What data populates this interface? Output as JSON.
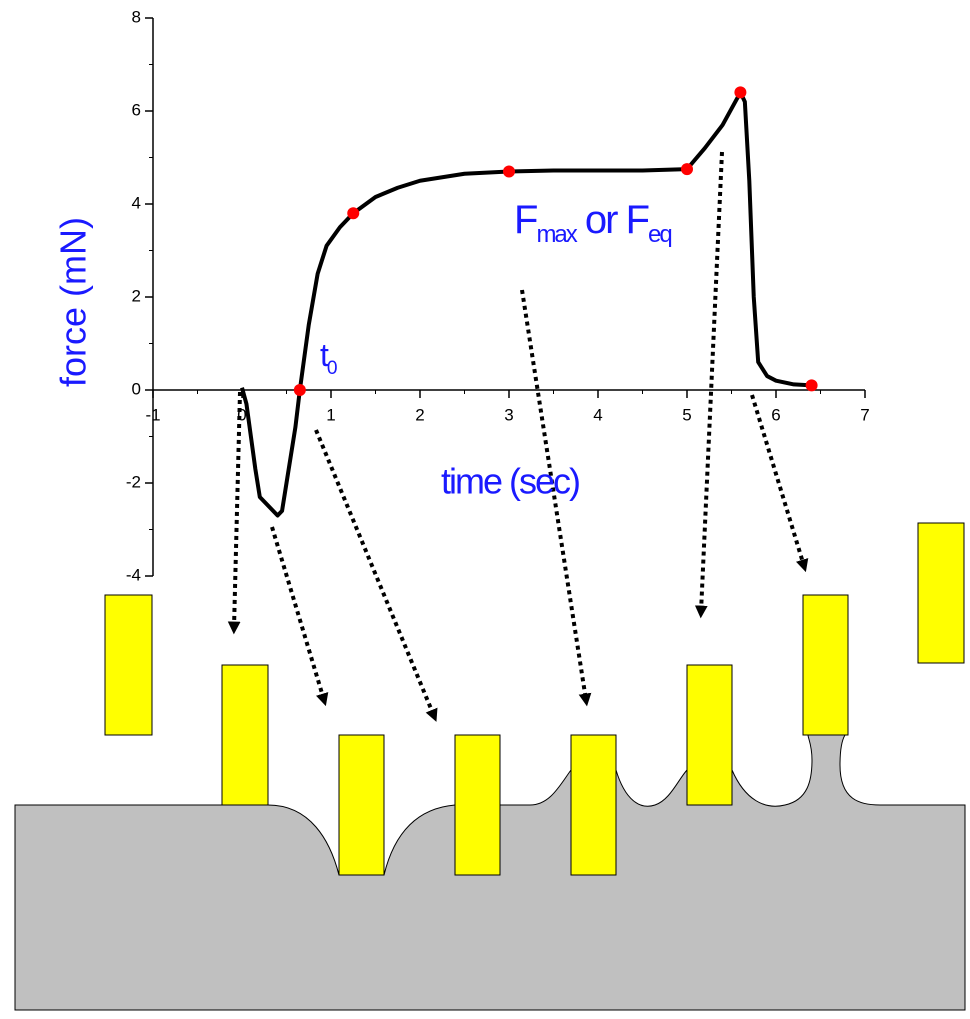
{
  "chart_data": {
    "type": "line",
    "x_label": "time (sec)",
    "y_label": "force (mN)",
    "xlim": [
      -1,
      7
    ],
    "ylim": [
      -4,
      8
    ],
    "xticks": [
      -1,
      0,
      1,
      2,
      3,
      4,
      5,
      6,
      7
    ],
    "yticks": [
      -4,
      -2,
      0,
      2,
      4,
      6,
      8
    ],
    "series": [
      {
        "color": "#000000",
        "x": [
          0,
          0.05,
          0.1,
          0.15,
          0.2,
          0.3,
          0.4,
          0.45,
          0.5,
          0.6,
          0.65,
          0.75,
          0.85,
          0.95,
          1.1,
          1.25,
          1.5,
          1.75,
          2,
          2.5,
          3,
          3.5,
          4,
          4.5,
          5,
          5.2,
          5.4,
          5.6,
          5.65,
          5.7,
          5.75,
          5.8,
          5.85,
          5.9,
          6,
          6.2,
          6.4
        ],
        "values": [
          0.05,
          -0.3,
          -1,
          -1.7,
          -2.3,
          -2.5,
          -2.7,
          -2.6,
          -2,
          -0.8,
          0,
          1.4,
          2.5,
          3.1,
          3.5,
          3.8,
          4.15,
          4.35,
          4.5,
          4.65,
          4.7,
          4.72,
          4.72,
          4.72,
          4.75,
          5.2,
          5.7,
          6.4,
          6.2,
          4.5,
          2,
          0.6,
          0.45,
          0.3,
          0.2,
          0.12,
          0.1
        ]
      },
      {
        "color": "#ff0000",
        "x": [
          0.65,
          1.25,
          3,
          5,
          5.6,
          6.4
        ],
        "values": [
          0,
          3.8,
          4.7,
          4.75,
          6.4,
          0.1
        ]
      }
    ],
    "annotations": [
      {
        "parts": [
          "t",
          "0"
        ]
      },
      {
        "parts": [
          "F",
          "max",
          " or F",
          "eq"
        ]
      }
    ]
  }
}
